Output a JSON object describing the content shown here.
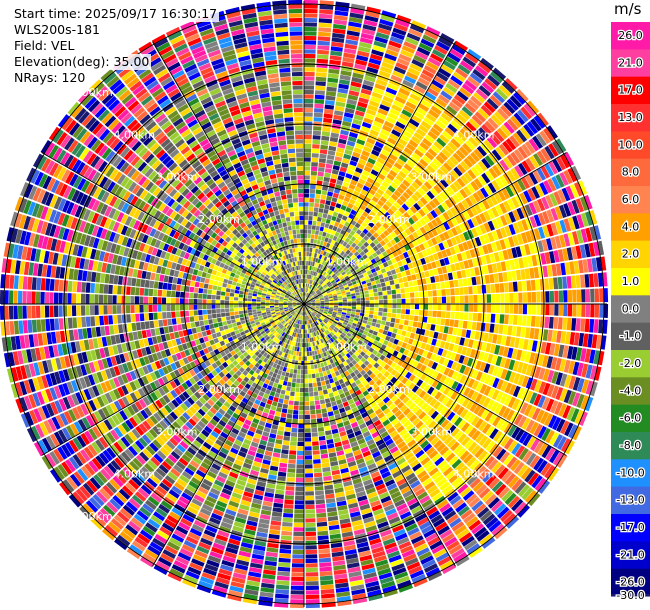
{
  "header": {
    "start_time": "Start time: 2025/09/17 16:30:17",
    "instrument": "WLS200s-181",
    "field": "Field: VEL",
    "elevation": "Elevation(deg): 35.00",
    "nrays": "NRays: 120"
  },
  "colorbar": {
    "unit": "m/s",
    "ticks": [
      "26.0",
      "21.0",
      "17.0",
      "13.0",
      "10.0",
      "8.0",
      "6.0",
      "4.0",
      "2.0",
      "1.0",
      "0.0",
      "-1.0",
      "-2.0",
      "-4.0",
      "-6.0",
      "-8.0",
      "-10.0",
      "-13.0",
      "-17.0",
      "-21.0",
      "-26.0",
      "-30.0"
    ],
    "colors": [
      "#ff1aa8",
      "#ff3fa0",
      "#ff0000",
      "#ff3030",
      "#ff4a2a",
      "#ff6a3c",
      "#ff8450",
      "#ffa000",
      "#ffd400",
      "#ffff00",
      "#808080",
      "#606060",
      "#9acd32",
      "#6b8e23",
      "#228b22",
      "#2e8b57",
      "#1e90ff",
      "#4169e1",
      "#0000ff",
      "#0000cd",
      "#000080",
      "#191970"
    ]
  },
  "chart_data": {
    "type": "heatmap",
    "projection": "polar-ppi",
    "field": "VEL",
    "units": "m/s",
    "elevation_deg": 35.0,
    "nrays": 120,
    "range_rings_km": [
      1.0,
      2.0,
      3.0,
      4.0,
      5.0
    ],
    "ring_labels": {
      "nw": [
        "1.00km",
        "2.00km",
        "3.00km",
        "4.00km",
        "5.00km"
      ],
      "ne": [
        "1.00km",
        "2.00km",
        "3.00km",
        "4.00km"
      ],
      "sw": [
        "1.00km",
        "2.00km",
        "3.00km",
        "4.00km",
        "5.00km"
      ],
      "se": [
        "1.00km",
        "2.00km",
        "3.00km",
        "4.00km"
      ]
    },
    "vmin": -30.0,
    "vmax": 30.0,
    "radial_lines_deg": [
      0,
      30,
      60,
      90,
      120,
      150,
      180,
      210,
      240,
      270,
      300,
      330
    ],
    "pattern": {
      "near_field_km": [
        0.0,
        1.6
      ],
      "near_field_values": [
        -1.0,
        0.0,
        1.0,
        -2.0
      ],
      "positive_sector_center_deg": 80,
      "positive_sector_halfwidth_deg": 65,
      "positive_sector_values": [
        1.0,
        2.0,
        4.0
      ],
      "noise_start_km": 4.0
    }
  }
}
